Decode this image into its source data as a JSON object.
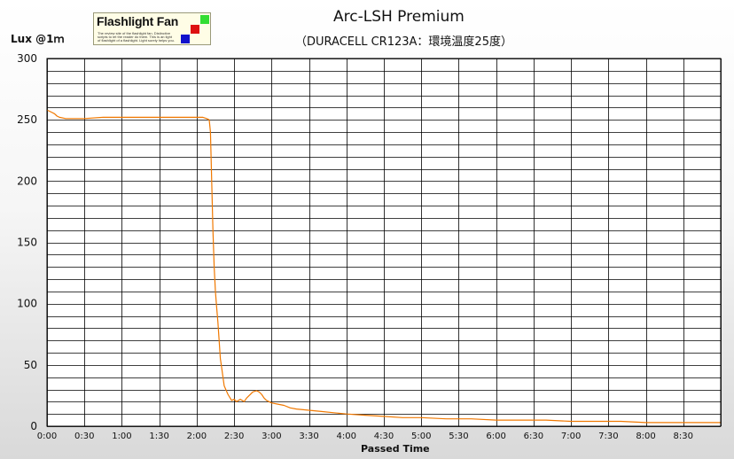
{
  "logo": {
    "title": "Flashlight Fan",
    "tagline": "The review site of the flashlight fan. Distinctive scripts to let the reader do them. This is an light of flashlight of a flashlight. Light surely helps you."
  },
  "chart_data": {
    "type": "line",
    "title": "Arc-LSH Premium",
    "subtitle": "（DURACELL CR123A：環境温度25度）",
    "ylabel": "Lux @1ｍ",
    "xlabel": "Passed Time",
    "xlim": [
      0,
      540
    ],
    "ylim": [
      0,
      300
    ],
    "yticks": [
      0,
      50,
      100,
      150,
      200,
      250,
      300
    ],
    "xtick_labels": [
      "0:00",
      "0:30",
      "1:00",
      "1:30",
      "2:00",
      "2:30",
      "3:00",
      "3:30",
      "4:00",
      "4:30",
      "5:00",
      "5:30",
      "6:00",
      "6:30",
      "7:00",
      "7:30",
      "8:00",
      "8:30"
    ],
    "grid": true,
    "series": [
      {
        "color": "#f07800",
        "x": [
          0,
          2,
          4,
          6,
          8,
          10,
          15,
          20,
          30,
          45,
          60,
          80,
          100,
          120,
          125,
          128,
          130,
          131,
          132,
          133,
          134,
          135,
          136,
          137,
          138,
          139,
          140,
          142,
          145,
          148,
          150,
          152,
          155,
          158,
          160,
          162,
          165,
          168,
          170,
          172,
          174,
          176,
          178,
          180,
          185,
          190,
          195,
          200,
          210,
          220,
          230,
          240,
          255,
          270,
          285,
          300,
          320,
          340,
          360,
          380,
          400,
          420,
          440,
          460,
          480,
          500,
          520,
          540
        ],
        "y": [
          258,
          257,
          256,
          255,
          253,
          252,
          251,
          251,
          251,
          252,
          252,
          252,
          252,
          252,
          252,
          251,
          250,
          240,
          200,
          160,
          130,
          110,
          97,
          85,
          70,
          55,
          48,
          33,
          26,
          21,
          22,
          20,
          22,
          20,
          23,
          25,
          28,
          29,
          28,
          26,
          23,
          21,
          20,
          19,
          18,
          17,
          15,
          14,
          13,
          12,
          11,
          10,
          9,
          8,
          7,
          7,
          6,
          6,
          5,
          5,
          5,
          4,
          4,
          4,
          3,
          3,
          3,
          3
        ]
      }
    ]
  }
}
